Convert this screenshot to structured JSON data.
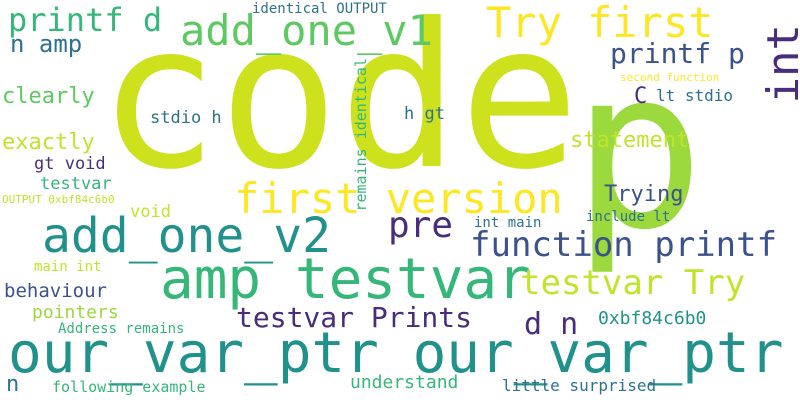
{
  "colors": {
    "background": "#ffffff",
    "palette": [
      "#cde11d",
      "#9bd93c",
      "#5ec962",
      "#35b779",
      "#21918c",
      "#2c728e",
      "#3b528b",
      "#472d7b",
      "#fde725",
      "#bfe52b"
    ]
  },
  "words": [
    {
      "text": "code",
      "color": "#cde11d"
    },
    {
      "text": "p",
      "color": "#9bd93c"
    },
    {
      "text": "our_var_ptr our_var_ptr",
      "color": "#21918c"
    },
    {
      "text": "amp testvar",
      "color": "#35b779"
    },
    {
      "text": "add_one_v2",
      "color": "#21918c"
    },
    {
      "text": "add_one_v1",
      "color": "#5ec962"
    },
    {
      "text": "Try first",
      "color": "#fde725"
    },
    {
      "text": "first version",
      "color": "#fde725"
    },
    {
      "text": "function printf",
      "color": "#3b528b"
    },
    {
      "text": "testvar Try",
      "color": "#bfe52b"
    },
    {
      "text": "testvar Prints",
      "color": "#472d7b"
    },
    {
      "text": "printf d",
      "color": "#35b779"
    },
    {
      "text": "printf p",
      "color": "#3b528b"
    },
    {
      "text": "int",
      "color": "#472d7b"
    },
    {
      "text": "pre",
      "color": "#472d7b"
    },
    {
      "text": "d n",
      "color": "#472d7b"
    },
    {
      "text": "n amp",
      "color": "#2c728e"
    },
    {
      "text": "C",
      "color": "#472d7b"
    },
    {
      "text": "lt stdio",
      "color": "#2c728e"
    },
    {
      "text": "clearly",
      "color": "#5ec962"
    },
    {
      "text": "exactly",
      "color": "#bfe52b"
    },
    {
      "text": "statement",
      "color": "#bfe52b"
    },
    {
      "text": "Trying",
      "color": "#3b528b"
    },
    {
      "text": "stdio h",
      "color": "#2c728e"
    },
    {
      "text": "h gt",
      "color": "#2c728e"
    },
    {
      "text": "gt void",
      "color": "#472d7b"
    },
    {
      "text": "testvar",
      "color": "#35b779"
    },
    {
      "text": "void",
      "color": "#bfe52b"
    },
    {
      "text": "int main",
      "color": "#2c728e"
    },
    {
      "text": "include lt",
      "color": "#2c728e"
    },
    {
      "text": "behaviour",
      "color": "#3b528b"
    },
    {
      "text": "pointers",
      "color": "#9bd93c"
    },
    {
      "text": "0xbf84c6b0",
      "color": "#21918c"
    },
    {
      "text": "Address remains",
      "color": "#35b779"
    },
    {
      "text": "understand",
      "color": "#35b779"
    },
    {
      "text": "following example",
      "color": "#35b779"
    },
    {
      "text": "little surprised",
      "color": "#2c728e"
    },
    {
      "text": "identical OUTPUT",
      "color": "#2c728e"
    },
    {
      "text": "second function",
      "color": "#fde725"
    },
    {
      "text": "OUTPUT 0xbf84c6b0",
      "color": "#bfe52b"
    },
    {
      "text": "main int",
      "color": "#bfe52b"
    },
    {
      "text": "remains identical",
      "color": "#35b779"
    },
    {
      "text": "n",
      "color": "#2c728e"
    }
  ]
}
